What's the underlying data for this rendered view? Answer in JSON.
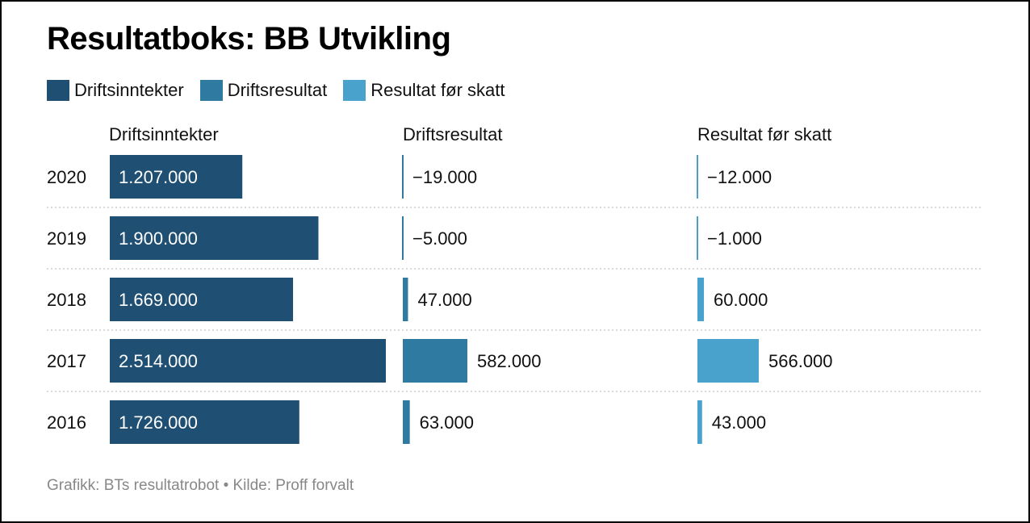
{
  "title": "Resultatboks: BB Utvikling",
  "legend": [
    {
      "label": "Driftsinntekter",
      "color": "#1f4f73"
    },
    {
      "label": "Driftsresultat",
      "color": "#2e7aa1"
    },
    {
      "label": "Resultat før skatt",
      "color": "#48a2cb"
    }
  ],
  "column_headers": [
    "Driftsinntekter",
    "Driftsresultat",
    "Resultat før skatt"
  ],
  "footer": "Grafikk: BTs resultatrobot • Kilde: Proff forvalt",
  "chart_data": {
    "type": "bar",
    "orientation": "horizontal",
    "categories": [
      "2020",
      "2019",
      "2018",
      "2017",
      "2016"
    ],
    "series": [
      {
        "name": "Driftsinntekter",
        "color": "#1f4f73",
        "values": [
          1207000,
          1900000,
          1669000,
          2514000,
          1726000
        ],
        "labels": [
          "1.207.000",
          "1.900.000",
          "1.669.000",
          "2.514.000",
          "1.726.000"
        ],
        "label_position": "inside"
      },
      {
        "name": "Driftsresultat",
        "color": "#2e7aa1",
        "values": [
          -19000,
          -5000,
          47000,
          582000,
          63000
        ],
        "labels": [
          "−19.000",
          "−5.000",
          "47.000",
          "582.000",
          "63.000"
        ],
        "label_position": "outside"
      },
      {
        "name": "Resultat før skatt",
        "color": "#48a2cb",
        "values": [
          -12000,
          -1000,
          60000,
          566000,
          43000
        ],
        "labels": [
          "−12.000",
          "−1.000",
          "60.000",
          "566.000",
          "43.000"
        ],
        "label_position": "outside"
      }
    ],
    "grid": "dotted row separators",
    "legend_position": "top-left"
  }
}
